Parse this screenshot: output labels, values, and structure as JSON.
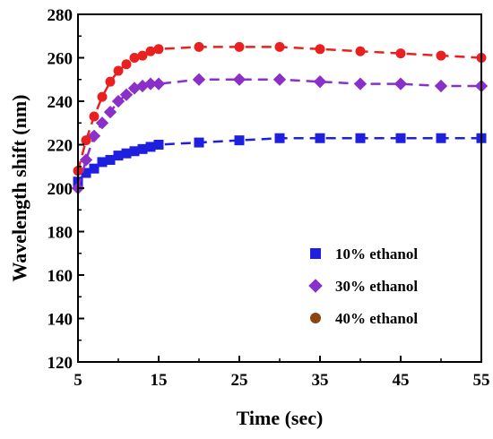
{
  "chart_data": {
    "type": "line",
    "title": "",
    "xlabel": "Time (sec)",
    "ylabel": "Wavelength shift (nm)",
    "xlim": [
      5,
      55
    ],
    "ylim": [
      120,
      280
    ],
    "xticks": [
      5,
      15,
      25,
      35,
      45,
      55
    ],
    "yticks": [
      120,
      140,
      160,
      180,
      200,
      220,
      240,
      260,
      280
    ],
    "grid": false,
    "legend_position": "bottom-right",
    "series": [
      {
        "name": "10% ethanol",
        "marker": "square",
        "color": "#1f1fe0",
        "x": [
          5,
          6,
          7,
          8,
          9,
          10,
          11,
          12,
          13,
          14,
          15,
          20,
          25,
          30,
          35,
          40,
          45,
          50,
          55
        ],
        "y": [
          203,
          207,
          209,
          212,
          213,
          215,
          216,
          217,
          218,
          219,
          220,
          221,
          222,
          223,
          223,
          223,
          223,
          223,
          223
        ]
      },
      {
        "name": "30% ethanol",
        "marker": "diamond",
        "color": "#8b2fc9",
        "x": [
          5,
          6,
          7,
          8,
          9,
          10,
          11,
          12,
          13,
          14,
          15,
          20,
          25,
          30,
          35,
          40,
          45,
          50,
          55
        ],
        "y": [
          200,
          213,
          224,
          230,
          235,
          240,
          243,
          246,
          247,
          248,
          248,
          250,
          250,
          250,
          249,
          248,
          248,
          247,
          247
        ]
      },
      {
        "name": "40% ethanol",
        "marker": "circle",
        "color": "#e82020",
        "legend_color": "#8b4513",
        "x": [
          5,
          6,
          7,
          8,
          9,
          10,
          11,
          12,
          13,
          14,
          15,
          20,
          25,
          30,
          35,
          40,
          45,
          50,
          55
        ],
        "y": [
          208,
          222,
          233,
          242,
          249,
          254,
          257,
          260,
          261,
          263,
          264,
          265,
          265,
          265,
          264,
          263,
          262,
          261,
          260
        ]
      }
    ]
  }
}
